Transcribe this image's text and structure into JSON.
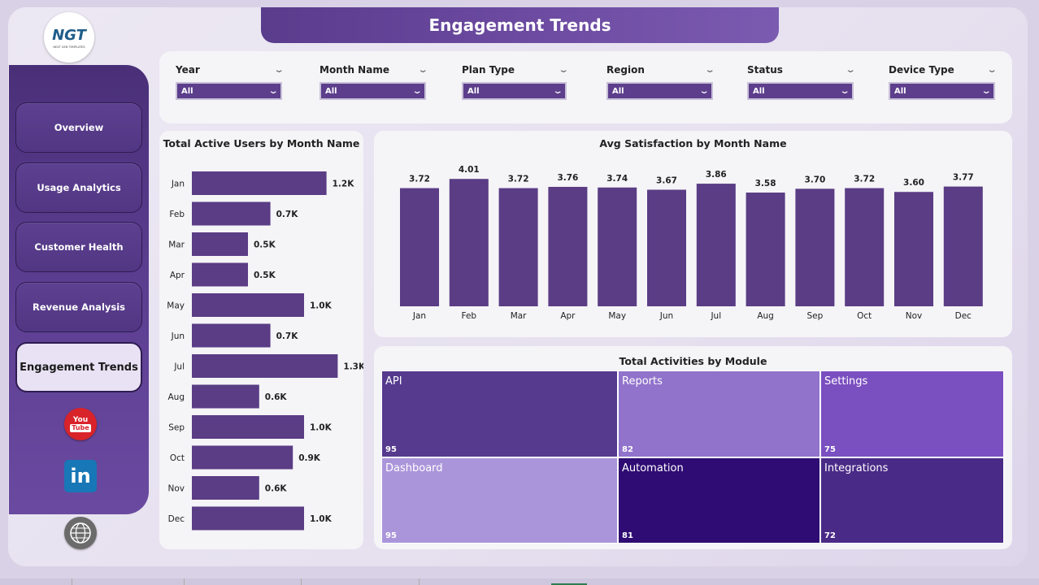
{
  "title": "Engagement Trends",
  "logo": {
    "main": "NGT",
    "sub": "NEXT GEN TEMPLATES"
  },
  "nav": [
    {
      "label": "Overview",
      "active": false
    },
    {
      "label": "Usage Analytics",
      "active": false
    },
    {
      "label": "Customer Health",
      "active": false
    },
    {
      "label": "Revenue Analysis",
      "active": false
    },
    {
      "label": "Engagement Trends",
      "active": true
    }
  ],
  "social": {
    "youtube_top": "You",
    "youtube_bottom": "Tube",
    "linkedin": "in"
  },
  "filters": [
    {
      "label": "Year",
      "value": "All"
    },
    {
      "label": "Month Name",
      "value": "All"
    },
    {
      "label": "Plan Type",
      "value": "All"
    },
    {
      "label": "Region",
      "value": "All"
    },
    {
      "label": "Status",
      "value": "All"
    },
    {
      "label": "Device Type",
      "value": "All"
    }
  ],
  "colors": {
    "accent": "#5c3e8c",
    "bar": "#5a3d85",
    "sidebar": "#4a2f78"
  },
  "chart_data": [
    {
      "type": "bar",
      "orientation": "horizontal",
      "title": "Total Active Users by Month Name",
      "categories": [
        "Jan",
        "Feb",
        "Mar",
        "Apr",
        "May",
        "Jun",
        "Jul",
        "Aug",
        "Sep",
        "Oct",
        "Nov",
        "Dec"
      ],
      "values": [
        1.2,
        0.7,
        0.5,
        0.5,
        1.0,
        0.7,
        1.3,
        0.6,
        1.0,
        0.9,
        0.6,
        1.0
      ],
      "labels": [
        "1.2K",
        "0.7K",
        "0.5K",
        "0.5K",
        "1.0K",
        "0.7K",
        "1.3K",
        "0.6K",
        "1.0K",
        "0.9K",
        "0.6K",
        "1.0K"
      ]
    },
    {
      "type": "bar",
      "title": "Avg Satisfaction by Month Name",
      "categories": [
        "Jan",
        "Feb",
        "Mar",
        "Apr",
        "May",
        "Jun",
        "Jul",
        "Aug",
        "Sep",
        "Oct",
        "Nov",
        "Dec"
      ],
      "values": [
        3.72,
        4.01,
        3.72,
        3.76,
        3.74,
        3.67,
        3.86,
        3.58,
        3.7,
        3.72,
        3.6,
        3.77
      ],
      "labels": [
        "3.72",
        "4.01",
        "3.72",
        "3.76",
        "3.74",
        "3.67",
        "3.86",
        "3.58",
        "3.70",
        "3.72",
        "3.60",
        "3.77"
      ]
    },
    {
      "type": "treemap",
      "title": "Total Activities by Module",
      "items": [
        {
          "name": "API",
          "value": 95,
          "color": "#553a8e"
        },
        {
          "name": "Reports",
          "value": 82,
          "color": "#9173cc"
        },
        {
          "name": "Settings",
          "value": 75,
          "color": "#7a4fc0"
        },
        {
          "name": "Dashboard",
          "value": 95,
          "color": "#ab95da"
        },
        {
          "name": "Automation",
          "value": 81,
          "color": "#2f0c73"
        },
        {
          "name": "Integrations",
          "value": 72,
          "color": "#4a2a87"
        }
      ]
    }
  ]
}
